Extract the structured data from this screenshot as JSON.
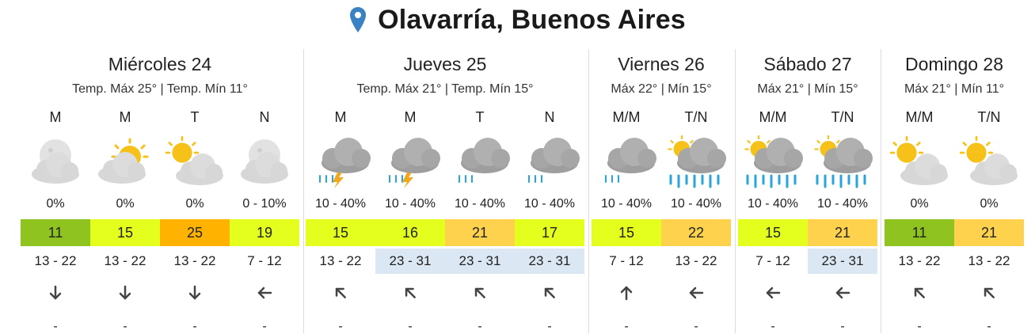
{
  "location": "Olavarría, Buenos Aires",
  "colors": {
    "t11": "#8fc31f",
    "t15": "#e4ff1e",
    "t16": "#e4ff1e",
    "t17": "#e4ff1e",
    "t19": "#e4ff1e",
    "t21": "#ffd24d",
    "t22": "#ffd24d",
    "t25": "#ffb300",
    "windHigh": "#dbe8f4"
  },
  "days": [
    {
      "name": "Miércoles 24",
      "temps": "Temp. Máx 25° | Temp. Mín 11°",
      "slots": [
        {
          "period": "M",
          "icon": "night-cloudy-icon",
          "rain": "0%",
          "temp": "11",
          "wind": "13 - 22",
          "dir": "down"
        },
        {
          "period": "M",
          "icon": "partly-sunny-icon",
          "rain": "0%",
          "temp": "15",
          "wind": "13 - 22",
          "dir": "down"
        },
        {
          "period": "T",
          "icon": "sun-cloud-icon",
          "rain": "0%",
          "temp": "25",
          "wind": "13 - 22",
          "dir": "down"
        },
        {
          "period": "N",
          "icon": "night-cloudy-icon",
          "rain": "0 - 10%",
          "temp": "19",
          "wind": "7 - 12",
          "dir": "left"
        }
      ]
    },
    {
      "name": "Jueves 25",
      "temps": "Temp. Máx 21° | Temp. Mín 15°",
      "slots": [
        {
          "period": "M",
          "icon": "storm-icon",
          "rain": "10 - 40%",
          "temp": "15",
          "wind": "13 - 22",
          "dir": "up-left"
        },
        {
          "period": "M",
          "icon": "storm-icon",
          "rain": "10 - 40%",
          "temp": "16",
          "wind": "23 - 31",
          "dir": "up-left"
        },
        {
          "period": "T",
          "icon": "showers-icon",
          "rain": "10 - 40%",
          "temp": "21",
          "wind": "23 - 31",
          "dir": "up-left"
        },
        {
          "period": "N",
          "icon": "showers-icon",
          "rain": "10 - 40%",
          "temp": "17",
          "wind": "23 - 31",
          "dir": "up-left"
        }
      ]
    },
    {
      "name": "Viernes 26",
      "temps": "Máx 22° | Mín 15°",
      "slots": [
        {
          "period": "M/M",
          "icon": "showers-icon",
          "rain": "10 - 40%",
          "temp": "15",
          "wind": "7 - 12",
          "dir": "up"
        },
        {
          "period": "T/N",
          "icon": "heavy-rain-sun-icon",
          "rain": "10 - 40%",
          "temp": "22",
          "wind": "13 - 22",
          "dir": "left"
        }
      ]
    },
    {
      "name": "Sábado 27",
      "temps": "Máx 21° | Mín 15°",
      "slots": [
        {
          "period": "M/M",
          "icon": "heavy-rain-sun-icon",
          "rain": "10 - 40%",
          "temp": "15",
          "wind": "7 - 12",
          "dir": "left"
        },
        {
          "period": "T/N",
          "icon": "heavy-rain-sun-icon",
          "rain": "10 - 40%",
          "temp": "21",
          "wind": "23 - 31",
          "dir": "left"
        }
      ]
    },
    {
      "name": "Domingo 28",
      "temps": "Máx 21° | Mín 11°",
      "slots": [
        {
          "period": "M/M",
          "icon": "sun-cloud-icon",
          "rain": "0%",
          "temp": "11",
          "wind": "13 - 22",
          "dir": "up-left"
        },
        {
          "period": "T/N",
          "icon": "sun-cloud-icon",
          "rain": "0%",
          "temp": "21",
          "wind": "13 - 22",
          "dir": "up-left"
        }
      ]
    }
  ],
  "dash": "-"
}
